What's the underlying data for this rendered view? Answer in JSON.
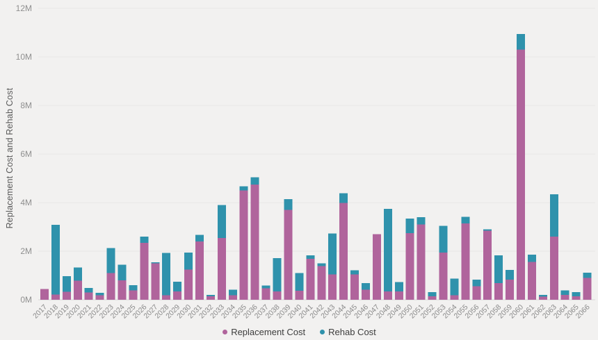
{
  "page": {
    "background_color": "#f2f1f0"
  },
  "chart_data": {
    "type": "bar",
    "stacked": true,
    "title": "",
    "xlabel": "",
    "ylabel": "Replacement Cost and Rehab Cost",
    "value_units": "millions (M)",
    "ylim": [
      0,
      12
    ],
    "ytick_labels": [
      "0M",
      "2M",
      "4M",
      "6M",
      "8M",
      "10M",
      "12M"
    ],
    "grid": "horizontal",
    "legend_position": "bottom-center",
    "categories": [
      "2017",
      "2018",
      "2019",
      "2020",
      "2021",
      "2022",
      "2023",
      "2024",
      "2025",
      "2026",
      "2027",
      "2028",
      "2029",
      "2030",
      "2031",
      "2032",
      "2033",
      "2034",
      "2035",
      "2036",
      "2037",
      "2038",
      "2039",
      "2040",
      "2041",
      "2042",
      "2043",
      "2044",
      "2045",
      "2046",
      "2047",
      "2048",
      "2049",
      "2050",
      "2051",
      "2052",
      "2053",
      "2054",
      "2055",
      "2056",
      "2057",
      "2058",
      "2059",
      "2060",
      "2061",
      "2062",
      "2063",
      "2064",
      "2065",
      "2066"
    ],
    "series": [
      {
        "name": "Replacement Cost",
        "color": "#b0649c",
        "values": [
          0.45,
          0.22,
          0.33,
          0.78,
          0.3,
          0.18,
          1.1,
          0.8,
          0.38,
          2.35,
          1.5,
          0.18,
          0.35,
          1.25,
          2.4,
          0.14,
          2.55,
          0.18,
          4.5,
          4.75,
          0.47,
          0.34,
          3.7,
          0.37,
          1.68,
          1.38,
          1.05,
          3.98,
          1.04,
          0.42,
          2.7,
          0.34,
          0.34,
          2.75,
          3.1,
          0.14,
          1.95,
          0.18,
          3.15,
          0.56,
          2.85,
          0.68,
          0.83,
          10.3,
          1.56,
          0.13,
          2.6,
          0.2,
          0.14,
          0.9
        ]
      },
      {
        "name": "Rehab Cost",
        "color": "#2f92ac",
        "values": [
          0.0,
          2.87,
          0.64,
          0.55,
          0.18,
          0.1,
          1.03,
          0.65,
          0.22,
          0.25,
          0.05,
          1.75,
          0.4,
          0.7,
          0.27,
          0.06,
          1.35,
          0.24,
          0.17,
          0.3,
          0.11,
          1.37,
          0.45,
          0.73,
          0.15,
          0.12,
          1.68,
          0.4,
          0.17,
          0.26,
          0.0,
          3.4,
          0.39,
          0.6,
          0.3,
          0.17,
          1.1,
          0.69,
          0.27,
          0.27,
          0.05,
          1.15,
          0.4,
          0.65,
          0.3,
          0.07,
          1.74,
          0.19,
          0.17,
          0.21
        ]
      }
    ]
  },
  "colors": {
    "gridline": "#e8e7e6",
    "baseline": "#d8d8d8",
    "axis_tick_text": "#8f8f8f",
    "x_label_text": "#8a8a8a"
  }
}
